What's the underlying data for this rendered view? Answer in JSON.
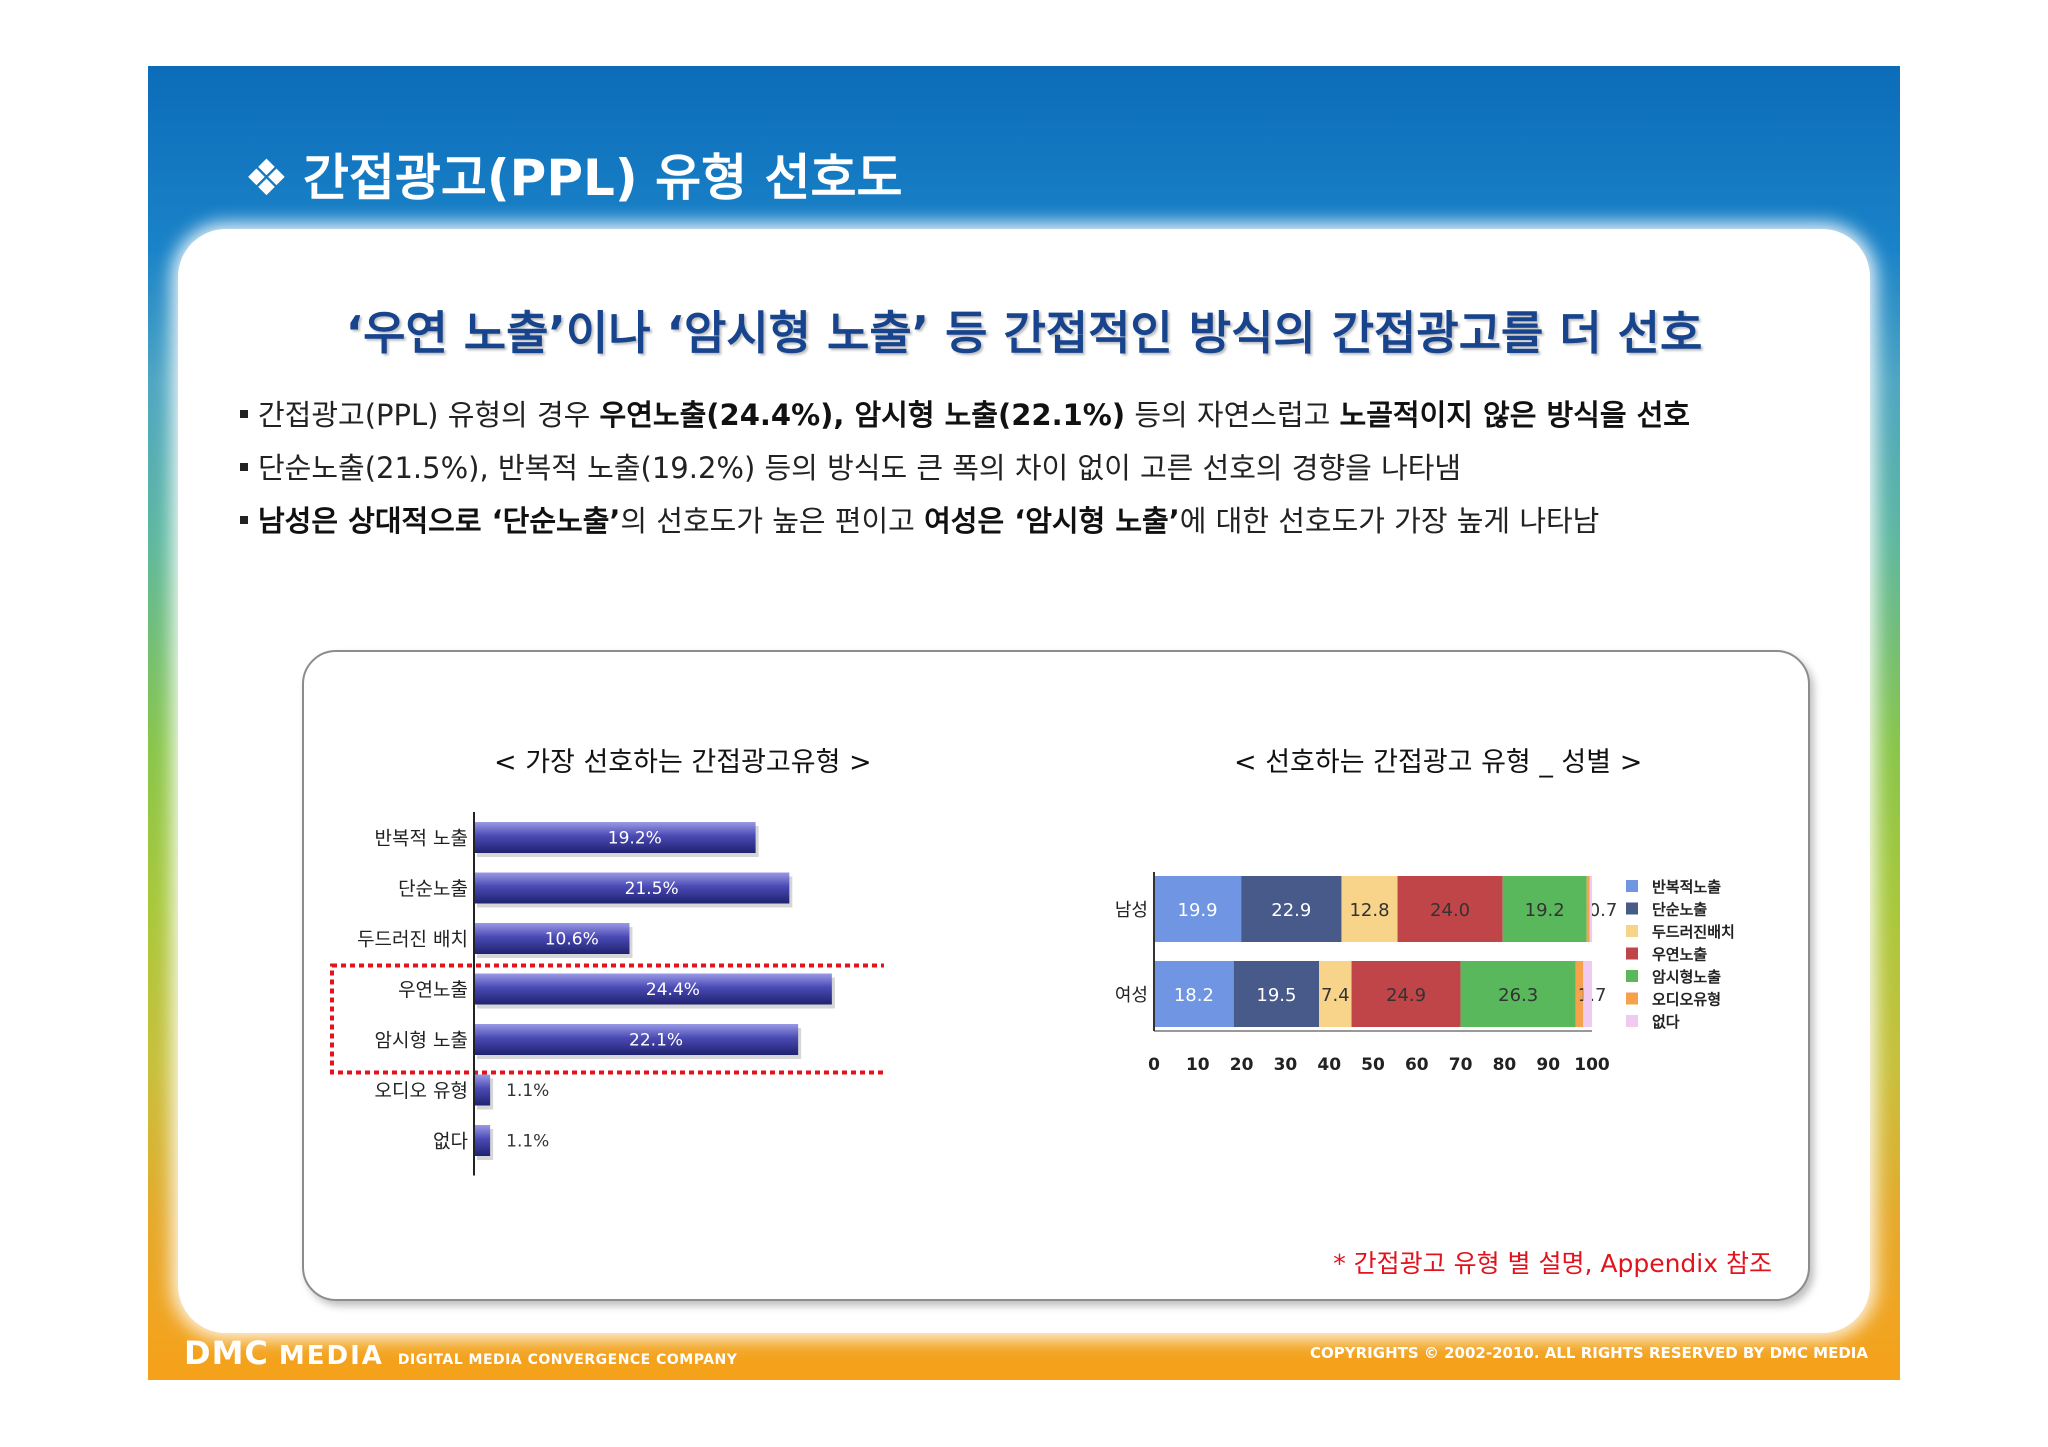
{
  "slide": {
    "title_bullet": "❖",
    "title": "간접광고(PPL) 유형 선호도",
    "subtitle": "‘우연 노출’이나 ‘암시형 노출’ 등 간접적인 방식의 간접광고를 더 선호"
  },
  "bullets": [
    [
      {
        "t": "간접광고(PPL) 유형의 경우 ",
        "b": false
      },
      {
        "t": "우연노출(24.4%), 암시형 노출(22.1%)",
        "b": true
      },
      {
        "t": " 등의 자연스럽고 ",
        "b": false
      },
      {
        "t": "노골적이지 않은 방식을 선호",
        "b": true
      }
    ],
    [
      {
        "t": "단순노출(21.5%), 반복적 노출(19.2%) 등의 방식도 큰 폭의 차이 없이 고른 선호의 경향을 나타냄",
        "b": false
      }
    ],
    [
      {
        "t": "남성은 상대적으로 ‘단순노출’",
        "b": true
      },
      {
        "t": "의 선호도가 높은 편이고 ",
        "b": false
      },
      {
        "t": "여성은 ‘암시형 노출’",
        "b": true
      },
      {
        "t": "에 대한 선호도가 가장 높게 나타남",
        "b": false
      }
    ]
  ],
  "note": "* 간접광고 유형 별 설명, Appendix 참조",
  "footer": {
    "logo": "DMC",
    "brand": "MEDIA",
    "tagline": "DIGITAL MEDIA CONVERGENCE COMPANY",
    "copyright": "COPYRIGHTS © 2002-2010. ALL RIGHTS RESERVED BY DMC MEDIA"
  },
  "colors": {
    "bar_dark": "#1f2270",
    "bar_light": "#9a9ae6",
    "highlight_box": "#e4121b",
    "subtitle": "#17448c"
  },
  "chart_data": [
    {
      "type": "bar",
      "orientation": "horizontal",
      "title": "< 가장 선호하는 간접광고유형 >",
      "categories": [
        "반복적 노출",
        "단순노출",
        "두드러진 배치",
        "우연노출",
        "암시형 노출",
        "오디오 유형",
        "없다"
      ],
      "values": [
        19.2,
        21.5,
        10.6,
        24.4,
        22.1,
        1.1,
        1.1
      ],
      "labels": [
        "19.2%",
        "21.5%",
        "10.6%",
        "24.4%",
        "22.1%",
        "1.1%",
        "1.1%"
      ],
      "highlighted": [
        "우연노출",
        "암시형 노출"
      ],
      "xlim": [
        0,
        30
      ]
    },
    {
      "type": "bar",
      "orientation": "horizontal",
      "stacked": true,
      "title": "< 선호하는 간접광고 유형 _ 성별 >",
      "categories": [
        "남성",
        "여성"
      ],
      "series": [
        {
          "name": "반복적노출",
          "color": "#6f95e3",
          "values": [
            19.9,
            18.2
          ]
        },
        {
          "name": "단순노출",
          "color": "#475a8a",
          "values": [
            22.9,
            19.5
          ]
        },
        {
          "name": "두드러진배치",
          "color": "#f8d48a",
          "values": [
            12.8,
            7.4
          ]
        },
        {
          "name": "우연노출",
          "color": "#bf4548",
          "values": [
            24.0,
            24.9
          ]
        },
        {
          "name": "암시형노출",
          "color": "#59b85b",
          "values": [
            19.2,
            26.3
          ]
        },
        {
          "name": "오디오유형",
          "color": "#f6a24d",
          "values": [
            0.7,
            1.7
          ]
        },
        {
          "name": "없다",
          "color": "#f0caef",
          "values": [
            0.5,
            2.0
          ]
        }
      ],
      "segment_labels": [
        [
          "19.9",
          "22.9",
          "12.8",
          "24.0",
          "19.2",
          "0.7",
          ""
        ],
        [
          "18.2",
          "19.5",
          "7.4",
          "24.9",
          "26.3",
          "1.7",
          ""
        ]
      ],
      "xlim": [
        0,
        100
      ],
      "xticks": [
        "0",
        "10",
        "20",
        "30",
        "40",
        "50",
        "60",
        "70",
        "80",
        "90",
        "100"
      ],
      "legend": "right"
    }
  ]
}
